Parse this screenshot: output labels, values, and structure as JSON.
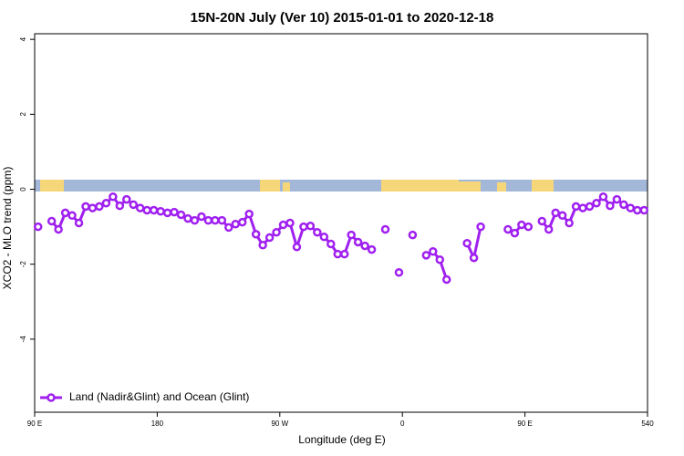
{
  "chart_data": {
    "type": "line",
    "title": "15N-20N July (Ver 10)   2015-01-01 to 2020-12-18",
    "x_label": "Longitude (deg E)",
    "y_label": "XCO2 - MLO trend (ppm)",
    "legend_position": "bottom-left",
    "xlim": [
      90,
      540
    ],
    "ylim": [
      -5.95,
      4.15
    ],
    "xticks": [
      {
        "value": 90,
        "label": "90 E"
      },
      180,
      {
        "value": 270,
        "label": "90 W"
      },
      {
        "value": 360,
        "label": "0"
      },
      {
        "value": 450,
        "label": "90 E"
      },
      540
    ],
    "yticks": [
      -4,
      -2,
      0,
      2,
      4
    ],
    "x": [
      92.5,
      97.5,
      102.5,
      107.5,
      112.5,
      117.5,
      122.5,
      127.5,
      132.5,
      137.5,
      142.5,
      147.5,
      152.5,
      157.5,
      162.5,
      167.5,
      172.5,
      177.5,
      182.5,
      187.5,
      192.5,
      197.5,
      202.5,
      207.5,
      212.5,
      217.5,
      222.5,
      227.5,
      232.5,
      237.5,
      242.5,
      247.5,
      252.5,
      257.5,
      262.5,
      267.5,
      272.5,
      277.5,
      282.5,
      287.5,
      292.5,
      297.5,
      302.5,
      307.5,
      312.5,
      317.5,
      322.5,
      327.5,
      332.5,
      337.5,
      342.5,
      347.5,
      352.5,
      357.5,
      362.5,
      367.5,
      372.5,
      377.5,
      382.5,
      387.5,
      392.5,
      397.5,
      402.5,
      407.5,
      412.5,
      417.5,
      422.5,
      427.5,
      432.5,
      437.5,
      442.5,
      447.5,
      452.5,
      457.5,
      462.5,
      467.5,
      472.5,
      477.5,
      482.5,
      487.5,
      492.5,
      497.5,
      502.5,
      507.5,
      512.5,
      517.5,
      522.5,
      527.5,
      532.5,
      537.5
    ],
    "series": [
      {
        "name": "Land (Nadir&Glint) and Ocean (Glint)",
        "color": "#a020f0",
        "values": [
          -1.0,
          null,
          -0.85,
          -1.07,
          -0.63,
          -0.7,
          -0.9,
          -0.46,
          -0.5,
          -0.46,
          -0.37,
          -0.2,
          -0.44,
          -0.27,
          -0.41,
          -0.5,
          -0.56,
          -0.56,
          -0.59,
          -0.63,
          -0.61,
          -0.68,
          -0.78,
          -0.83,
          -0.73,
          -0.83,
          -0.83,
          -0.83,
          -1.02,
          -0.93,
          -0.88,
          -0.66,
          -1.2,
          -1.49,
          -1.29,
          -1.15,
          -0.95,
          -0.9,
          -1.54,
          -1.0,
          -0.98,
          -1.15,
          -1.27,
          -1.46,
          -1.73,
          -1.73,
          -1.22,
          -1.41,
          -1.51,
          -1.61,
          null,
          -1.07,
          null,
          -2.22,
          null,
          -1.22,
          null,
          -1.76,
          -1.66,
          -1.88,
          -2.41,
          null,
          null,
          -1.44,
          -1.83,
          -1.0,
          null,
          null,
          null,
          -1.07,
          -1.17,
          -0.95,
          -1.0,
          null,
          -0.85,
          -1.07,
          -0.63,
          -0.7,
          -0.9,
          -0.46,
          -0.5,
          -0.46,
          -0.37,
          -0.2,
          -0.44,
          -0.27,
          -0.41,
          -0.5,
          -0.56,
          -0.56
        ]
      }
    ]
  }
}
